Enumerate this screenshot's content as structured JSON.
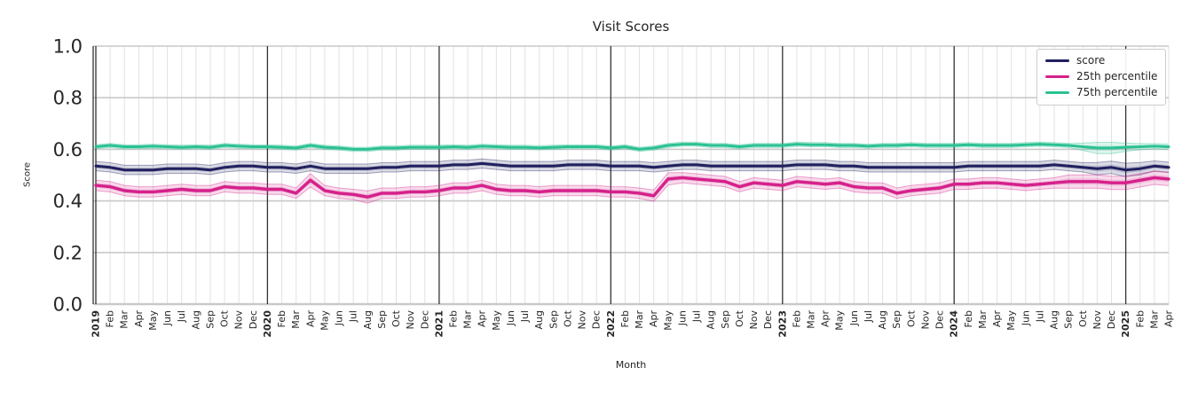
{
  "chart_data": {
    "type": "line",
    "title": "Visit Scores",
    "xlabel": "Month",
    "ylabel": "Score",
    "ylim": [
      0.0,
      1.0
    ],
    "yticks": [
      0.0,
      0.2,
      0.4,
      0.6,
      0.8,
      1.0
    ],
    "ytick_labels": [
      "0.0",
      "0.2",
      "0.4",
      "0.6",
      "0.8",
      "1.0"
    ],
    "grid": true,
    "legend_position": "upper right",
    "colors": {
      "grid_minor": "#e2e2e2",
      "grid_major": "#c9c9c9",
      "year_line": "#333333",
      "spine": "#333333",
      "text": "#262626"
    },
    "categories": [
      "2019",
      "Feb",
      "Mar",
      "Apr",
      "May",
      "Jun",
      "Jul",
      "Aug",
      "Sep",
      "Oct",
      "Nov",
      "Dec",
      "2020",
      "Feb",
      "Mar",
      "Apr",
      "May",
      "Jun",
      "Jul",
      "Aug",
      "Sep",
      "Oct",
      "Nov",
      "Dec",
      "2021",
      "Feb",
      "Mar",
      "Apr",
      "May",
      "Jun",
      "Jul",
      "Aug",
      "Sep",
      "Oct",
      "Nov",
      "Dec",
      "2022",
      "Feb",
      "Mar",
      "Apr",
      "May",
      "Jun",
      "Jul",
      "Aug",
      "Sep",
      "Oct",
      "Nov",
      "Dec",
      "2023",
      "Feb",
      "Mar",
      "Apr",
      "May",
      "Jun",
      "Jul",
      "Aug",
      "Sep",
      "Oct",
      "Nov",
      "Dec",
      "2024",
      "Feb",
      "Mar",
      "Apr",
      "May",
      "Jun",
      "Jul",
      "Aug",
      "Sep",
      "Oct",
      "Nov",
      "Dec",
      "2025",
      "Feb",
      "Mar",
      "Apr"
    ],
    "series": [
      {
        "name": "score",
        "color": "#20205f",
        "values": [
          0.535,
          0.53,
          0.52,
          0.52,
          0.52,
          0.525,
          0.525,
          0.525,
          0.52,
          0.53,
          0.535,
          0.535,
          0.53,
          0.53,
          0.525,
          0.535,
          0.525,
          0.525,
          0.525,
          0.525,
          0.53,
          0.53,
          0.535,
          0.535,
          0.535,
          0.54,
          0.54,
          0.545,
          0.54,
          0.535,
          0.535,
          0.535,
          0.535,
          0.54,
          0.54,
          0.54,
          0.535,
          0.535,
          0.535,
          0.53,
          0.535,
          0.54,
          0.54,
          0.535,
          0.535,
          0.535,
          0.535,
          0.535,
          0.535,
          0.54,
          0.54,
          0.54,
          0.535,
          0.535,
          0.53,
          0.53,
          0.53,
          0.53,
          0.53,
          0.53,
          0.53,
          0.535,
          0.535,
          0.535,
          0.535,
          0.535,
          0.535,
          0.54,
          0.535,
          0.53,
          0.525,
          0.53,
          0.52,
          0.525,
          0.535,
          0.53
        ],
        "band_halfwidths": [
          0.018,
          0.018,
          0.018,
          0.018,
          0.018,
          0.018,
          0.018,
          0.018,
          0.018,
          0.018,
          0.018,
          0.018,
          0.018,
          0.018,
          0.018,
          0.018,
          0.018,
          0.018,
          0.018,
          0.018,
          0.018,
          0.018,
          0.018,
          0.018,
          0.018,
          0.018,
          0.018,
          0.018,
          0.018,
          0.018,
          0.018,
          0.018,
          0.018,
          0.018,
          0.018,
          0.018,
          0.018,
          0.018,
          0.018,
          0.018,
          0.018,
          0.018,
          0.018,
          0.018,
          0.018,
          0.018,
          0.018,
          0.018,
          0.018,
          0.018,
          0.018,
          0.018,
          0.018,
          0.018,
          0.018,
          0.018,
          0.018,
          0.018,
          0.018,
          0.018,
          0.018,
          0.018,
          0.018,
          0.018,
          0.018,
          0.018,
          0.018,
          0.018,
          0.018,
          0.018,
          0.024,
          0.024,
          0.026,
          0.024,
          0.02,
          0.02
        ]
      },
      {
        "name": "25th percentile",
        "color": "#d5218b",
        "values": [
          0.46,
          0.455,
          0.44,
          0.435,
          0.435,
          0.44,
          0.445,
          0.44,
          0.44,
          0.455,
          0.45,
          0.45,
          0.445,
          0.445,
          0.43,
          0.48,
          0.44,
          0.43,
          0.425,
          0.415,
          0.43,
          0.43,
          0.435,
          0.435,
          0.44,
          0.45,
          0.45,
          0.46,
          0.445,
          0.44,
          0.44,
          0.435,
          0.44,
          0.44,
          0.44,
          0.44,
          0.435,
          0.435,
          0.43,
          0.42,
          0.485,
          0.49,
          0.485,
          0.48,
          0.475,
          0.455,
          0.47,
          0.465,
          0.46,
          0.475,
          0.47,
          0.465,
          0.47,
          0.455,
          0.45,
          0.45,
          0.43,
          0.44,
          0.445,
          0.45,
          0.465,
          0.465,
          0.47,
          0.47,
          0.465,
          0.46,
          0.465,
          0.47,
          0.475,
          0.475,
          0.475,
          0.47,
          0.47,
          0.48,
          0.49,
          0.485
        ],
        "band_halfwidths": [
          0.02,
          0.02,
          0.02,
          0.02,
          0.02,
          0.02,
          0.02,
          0.02,
          0.02,
          0.02,
          0.02,
          0.02,
          0.02,
          0.02,
          0.02,
          0.026,
          0.02,
          0.02,
          0.02,
          0.024,
          0.02,
          0.02,
          0.02,
          0.02,
          0.02,
          0.02,
          0.02,
          0.02,
          0.02,
          0.02,
          0.02,
          0.02,
          0.02,
          0.02,
          0.02,
          0.02,
          0.02,
          0.02,
          0.02,
          0.022,
          0.024,
          0.02,
          0.02,
          0.02,
          0.02,
          0.02,
          0.02,
          0.02,
          0.02,
          0.02,
          0.02,
          0.02,
          0.02,
          0.02,
          0.02,
          0.02,
          0.02,
          0.02,
          0.02,
          0.02,
          0.02,
          0.02,
          0.02,
          0.02,
          0.02,
          0.02,
          0.02,
          0.02,
          0.026,
          0.026,
          0.026,
          0.026,
          0.026,
          0.026,
          0.026,
          0.026
        ]
      },
      {
        "name": "75th percentile",
        "color": "#2bc192",
        "values": [
          0.61,
          0.615,
          0.61,
          0.61,
          0.612,
          0.61,
          0.608,
          0.61,
          0.608,
          0.615,
          0.612,
          0.61,
          0.61,
          0.608,
          0.605,
          0.615,
          0.608,
          0.605,
          0.6,
          0.6,
          0.605,
          0.605,
          0.608,
          0.608,
          0.608,
          0.61,
          0.608,
          0.612,
          0.61,
          0.608,
          0.608,
          0.606,
          0.608,
          0.61,
          0.61,
          0.61,
          0.605,
          0.61,
          0.6,
          0.605,
          0.615,
          0.62,
          0.62,
          0.615,
          0.615,
          0.61,
          0.615,
          0.615,
          0.615,
          0.62,
          0.618,
          0.618,
          0.615,
          0.615,
          0.612,
          0.615,
          0.615,
          0.618,
          0.615,
          0.615,
          0.615,
          0.618,
          0.615,
          0.615,
          0.615,
          0.618,
          0.62,
          0.618,
          0.615,
          0.61,
          0.605,
          0.605,
          0.608,
          0.61,
          0.612,
          0.61
        ],
        "band_halfwidths": [
          0.008,
          0.008,
          0.008,
          0.008,
          0.008,
          0.008,
          0.008,
          0.008,
          0.008,
          0.008,
          0.008,
          0.008,
          0.008,
          0.008,
          0.008,
          0.008,
          0.008,
          0.008,
          0.008,
          0.008,
          0.008,
          0.008,
          0.008,
          0.008,
          0.008,
          0.008,
          0.008,
          0.008,
          0.008,
          0.008,
          0.008,
          0.008,
          0.008,
          0.008,
          0.008,
          0.008,
          0.008,
          0.008,
          0.008,
          0.008,
          0.008,
          0.008,
          0.008,
          0.008,
          0.008,
          0.008,
          0.008,
          0.008,
          0.008,
          0.008,
          0.008,
          0.008,
          0.008,
          0.008,
          0.008,
          0.008,
          0.008,
          0.008,
          0.008,
          0.008,
          0.008,
          0.008,
          0.008,
          0.008,
          0.008,
          0.008,
          0.008,
          0.008,
          0.008,
          0.014,
          0.022,
          0.022,
          0.016,
          0.012,
          0.01,
          0.01
        ]
      }
    ]
  }
}
